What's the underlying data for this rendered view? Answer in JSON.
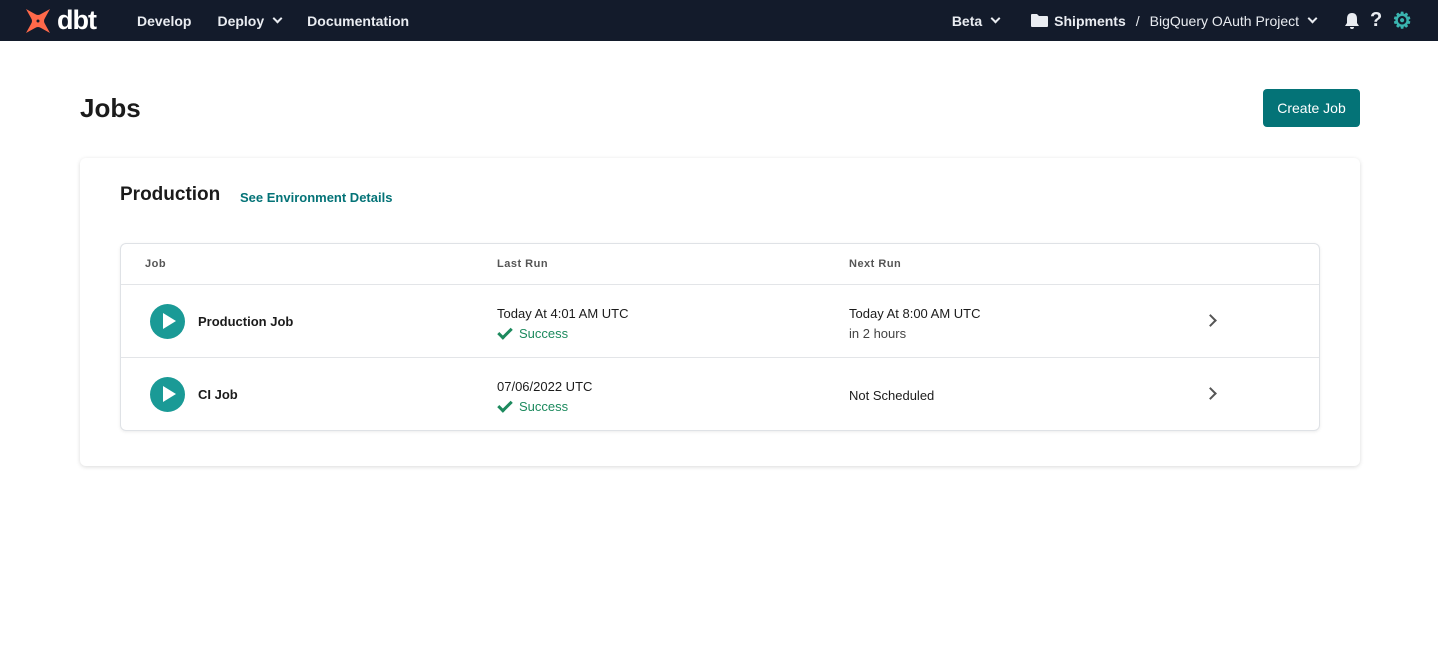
{
  "nav": {
    "brand": "dbt",
    "items": [
      "Develop",
      "Deploy",
      "Documentation"
    ],
    "env": "Beta",
    "account": "Shipments",
    "project": "BigQuery OAuth Project"
  },
  "page": {
    "title": "Jobs",
    "create_label": "Create Job"
  },
  "environment": {
    "name": "Production",
    "link": "See Environment Details"
  },
  "table": {
    "headers": [
      "Job",
      "Last Run",
      "Next Run"
    ],
    "rows": [
      {
        "name": "Production Job",
        "last_run": "Today At 4:01 AM UTC",
        "status": "Success",
        "next_run": "Today At 8:00 AM UTC",
        "next_sub": "in 2 hours"
      },
      {
        "name": "CI Job",
        "last_run": "07/06/2022 UTC",
        "status": "Success",
        "next_run": "Not Scheduled",
        "next_sub": ""
      }
    ]
  },
  "colors": {
    "accent": "#047377",
    "nav_bg": "#131b2b",
    "logo": "#ff694a",
    "success": "#1d8a5e"
  }
}
